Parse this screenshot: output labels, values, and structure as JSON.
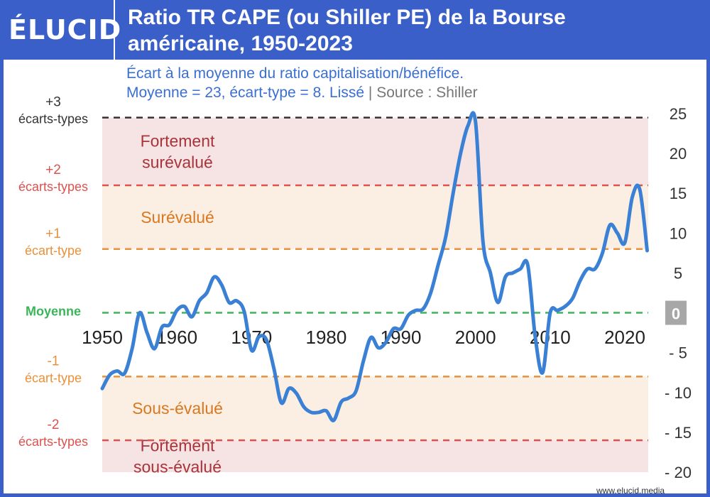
{
  "header": {
    "logo": "ÉLUCID",
    "title_line1": "Ratio TR CAPE (ou Shiller PE) de la Bourse",
    "title_line2": "américaine, 1950-2023"
  },
  "subtitle": {
    "line1": "Écart à la moyenne du ratio capitalisation/bénéfice.",
    "line2": "Moyenne = 23, écart-type = 8. Lissé",
    "separator": "|",
    "source": "Source : Shiller"
  },
  "footer": {
    "url": "www.elucid.media"
  },
  "colors": {
    "brand": "#3a5fc8",
    "line": "#3a80d4",
    "dark_red": "#a8333a",
    "red": "#d9534f",
    "orange": "#e8913a",
    "green": "#3cb55a",
    "black": "#333333"
  },
  "chart_data": {
    "type": "line",
    "x_ticks": [
      "1950",
      "1960",
      "1970",
      "1980",
      "1990",
      "2000",
      "2010",
      "2020"
    ],
    "y_ticks": [
      "25",
      "20",
      "15",
      "10",
      "5",
      "0",
      "- 5",
      "- 10",
      "- 15",
      "- 20"
    ],
    "xlim": [
      1950,
      2023
    ],
    "ylim": [
      -20,
      25
    ],
    "zones": [
      {
        "label": [
          "Fortement",
          "surévalué"
        ],
        "from": 16,
        "to": 24.5,
        "fill": "#f6e4e4",
        "color": "#a8333a"
      },
      {
        "label": [
          "Surévalué"
        ],
        "from": 8,
        "to": 16,
        "fill": "#fbeee3",
        "color": "#d97820"
      },
      {
        "label": [
          "Sous-évalué"
        ],
        "from": -16,
        "to": -8,
        "fill": "#fbeee3",
        "color": "#d97820"
      },
      {
        "label": [
          "Fortement",
          "sous-évalué"
        ],
        "from": -20,
        "to": -16,
        "fill": "#f6e4e4",
        "color": "#a8333a"
      }
    ],
    "reference_lines": [
      {
        "y": 24.5,
        "label": [
          "+3",
          "écarts-types"
        ],
        "color": "#333333"
      },
      {
        "y": 16,
        "label": [
          "+2",
          "écarts-types"
        ],
        "color": "#d9534f"
      },
      {
        "y": 8,
        "label": [
          "+1",
          "écart-type"
        ],
        "color": "#e8913a"
      },
      {
        "y": 0,
        "label": [
          "Moyenne"
        ],
        "color": "#3cb55a"
      },
      {
        "y": -8,
        "label": [
          "-1",
          "écart-type"
        ],
        "color": "#e8913a"
      },
      {
        "y": -16,
        "label": [
          "-2",
          "écarts-types"
        ],
        "color": "#d9534f"
      }
    ],
    "series": [
      {
        "x": [
          1950,
          1951,
          1952,
          1953,
          1954,
          1955,
          1956,
          1957,
          1958,
          1959,
          1960,
          1961,
          1962,
          1963,
          1964,
          1965,
          1966,
          1967,
          1968,
          1969,
          1970,
          1971,
          1972,
          1973,
          1974,
          1975,
          1976,
          1977,
          1978,
          1979,
          1980,
          1981,
          1982,
          1983,
          1984,
          1985,
          1986,
          1987,
          1988,
          1989,
          1990,
          1991,
          1992,
          1993,
          1994,
          1995,
          1996,
          1997,
          1998,
          1999,
          2000,
          2001,
          2002,
          2003,
          2004,
          2005,
          2006,
          2007,
          2008,
          2009,
          2010,
          2011,
          2012,
          2013,
          2014,
          2015,
          2016,
          2017,
          2018,
          2019,
          2020,
          2021,
          2022,
          2023
        ],
        "y": [
          -9.5,
          -7.8,
          -7.3,
          -7.6,
          -4.5,
          0,
          -2.5,
          -4.5,
          -1.8,
          -1.5,
          0.3,
          0.8,
          -0.5,
          1.5,
          2.5,
          4.5,
          3.5,
          1.3,
          1.5,
          0.2,
          -4.7,
          -3,
          -3.4,
          -7,
          -11.3,
          -9.5,
          -10.1,
          -11.8,
          -12.5,
          -12.5,
          -12.3,
          -13.5,
          -11.2,
          -10.7,
          -9.8,
          -6,
          -3.1,
          -4.4,
          -3.7,
          -2,
          -2,
          -0.3,
          0.3,
          0.5,
          2.5,
          6,
          9.5,
          15,
          20,
          23.5,
          24,
          9,
          5,
          1.3,
          4.5,
          5,
          5.5,
          6,
          -3,
          -7.5,
          0,
          0.3,
          0.8,
          1.8,
          4,
          5.5,
          5.5,
          7.5,
          11,
          10,
          8.8,
          14.5,
          15.5,
          7.8
        ]
      }
    ]
  }
}
